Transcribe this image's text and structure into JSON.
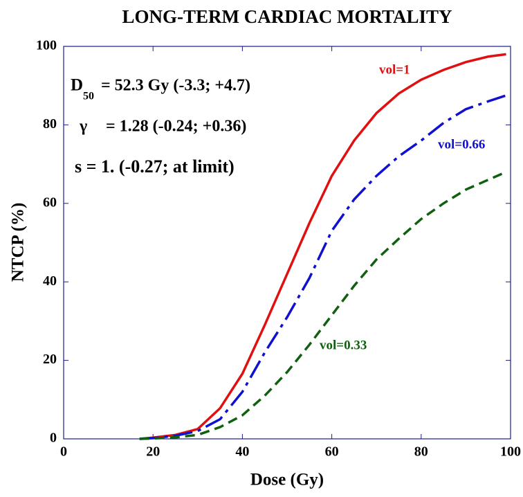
{
  "chart_data": {
    "type": "line",
    "title": "LONG-TERM CARDIAC MORTALITY",
    "x_label": "Dose (Gy)",
    "y_label": "NTCP (%)",
    "annotations": {
      "d50_symbol": "D",
      "d50_subscript": "50",
      "d50_text": "= 52.3 Gy (-3.3; +4.7)",
      "gamma_symbol": "γ",
      "gamma_text": "= 1.28 (-0.24; +0.36)",
      "s_text": "s = 1. (-0.27; at limit)"
    },
    "x": [
      17,
      20,
      25,
      30,
      35,
      40,
      45,
      50,
      55,
      60,
      65,
      70,
      75,
      80,
      85,
      90,
      95,
      99
    ],
    "series": [
      {
        "name": "vol=1",
        "color": "#e01010",
        "linestyle": "solid",
        "values": [
          0,
          0.3,
          1,
          2.5,
          7.8,
          16.6,
          29,
          42,
          55,
          67,
          76,
          83,
          88,
          91.5,
          94,
          96,
          97.4,
          98
        ]
      },
      {
        "name": "vol=0.66",
        "color": "#1010d0",
        "linestyle": "dashdot",
        "values": [
          0,
          0.2,
          0.8,
          2,
          5,
          12,
          22,
          31,
          41,
          53,
          61,
          67,
          72,
          76,
          80.5,
          84,
          86,
          87.5
        ]
      },
      {
        "name": "vol=0.33",
        "color": "#106010",
        "linestyle": "dashed",
        "values": [
          0,
          0.1,
          0.4,
          1,
          3,
          6,
          11,
          17,
          24,
          31.5,
          39,
          45.7,
          51,
          56,
          60,
          63.5,
          66,
          68
        ]
      }
    ],
    "xlim": [
      0,
      100
    ],
    "ylim": [
      0,
      100
    ],
    "xticks": [
      0,
      20,
      40,
      60,
      80,
      100
    ],
    "yticks": [
      0,
      20,
      40,
      60,
      80,
      100
    ]
  }
}
